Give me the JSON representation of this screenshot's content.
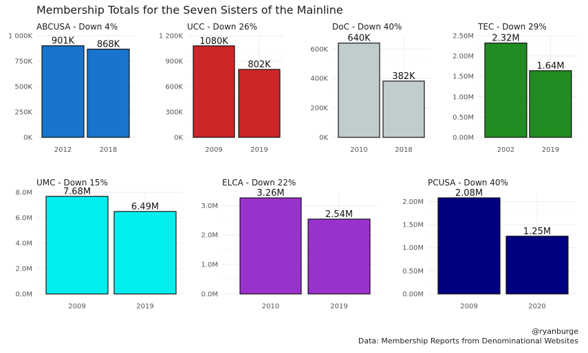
{
  "title": "Membership Totals for the Seven Sisters of the Mainline",
  "credits": {
    "author": "@ryanburge",
    "source": "Data: Membership Reports from Denominational Websites"
  },
  "chart_data": [
    {
      "type": "bar",
      "title": "ABCUSA - Down 4%",
      "categories": [
        "2012",
        "2018"
      ],
      "values": [
        901000,
        868000
      ],
      "labels": [
        "901K",
        "868K"
      ],
      "color": "#1874CD",
      "ylim": [
        0,
        1000000
      ],
      "yticks": [
        0,
        250000,
        500000,
        750000,
        1000000
      ],
      "ytick_labels": [
        "0K",
        "250K",
        "500K",
        "750K",
        "1 000K"
      ],
      "grid": true
    },
    {
      "type": "bar",
      "title": "UCC - Down 26%",
      "categories": [
        "2009",
        "2019"
      ],
      "values": [
        1080000,
        802000
      ],
      "labels": [
        "1080K",
        "802K"
      ],
      "color": "#CD2626",
      "ylim": [
        0,
        1200000
      ],
      "yticks": [
        0,
        300000,
        600000,
        900000,
        1200000
      ],
      "ytick_labels": [
        "0K",
        "300K",
        "600K",
        "900K",
        "1 200K"
      ],
      "grid": true
    },
    {
      "type": "bar",
      "title": "DoC - Down 40%",
      "categories": [
        "2010",
        "2018"
      ],
      "values": [
        640000,
        382000
      ],
      "labels": [
        "640K",
        "382K"
      ],
      "color": "#C1CDCD",
      "ylim": [
        0,
        690000
      ],
      "yticks": [
        0,
        200000,
        400000,
        600000
      ],
      "ytick_labels": [
        "0K",
        "200K",
        "400K",
        "600K"
      ],
      "grid": true
    },
    {
      "type": "bar",
      "title": "TEC - Down 29%",
      "categories": [
        "2002",
        "2019"
      ],
      "values": [
        2320000,
        1640000
      ],
      "labels": [
        "2.32M",
        "1.64M"
      ],
      "color": "#228B22",
      "ylim": [
        0,
        2500000
      ],
      "yticks": [
        0,
        500000,
        1000000,
        1500000,
        2000000,
        2500000
      ],
      "ytick_labels": [
        "0.00M",
        "0.50M",
        "1.00M",
        "1.50M",
        "2.00M",
        "2.50M"
      ],
      "grid": true
    },
    {
      "type": "bar",
      "title": "UMC - Down 15%",
      "categories": [
        "2009",
        "2019"
      ],
      "values": [
        7680000,
        6490000
      ],
      "labels": [
        "7.68M",
        "6.49M"
      ],
      "color": "#00EEEE",
      "ylim": [
        0,
        8000000
      ],
      "yticks": [
        0,
        2000000,
        4000000,
        6000000,
        8000000
      ],
      "ytick_labels": [
        "0.0M",
        "2.0M",
        "4.0M",
        "6.0M",
        "8.0M"
      ],
      "grid": true
    },
    {
      "type": "bar",
      "title": "ELCA - Down 22%",
      "categories": [
        "2010",
        "2019"
      ],
      "values": [
        3260000,
        2540000
      ],
      "labels": [
        "3.26M",
        "2.54M"
      ],
      "color": "#9932CC",
      "ylim": [
        0,
        3450000
      ],
      "yticks": [
        0,
        1000000,
        2000000,
        3000000
      ],
      "ytick_labels": [
        "0.0M",
        "1.0M",
        "2.0M",
        "3.0M"
      ],
      "grid": true
    },
    {
      "type": "bar",
      "title": "PCUSA - Down 40%",
      "categories": [
        "2009",
        "2020"
      ],
      "values": [
        2080000,
        1250000
      ],
      "labels": [
        "2.08M",
        "1.25M"
      ],
      "color": "#000080",
      "ylim": [
        0,
        2200000
      ],
      "yticks": [
        0,
        500000,
        1000000,
        1500000,
        2000000
      ],
      "ytick_labels": [
        "0.00M",
        "0.50M",
        "1.00M",
        "1.50M",
        "2.00M"
      ],
      "grid": true
    }
  ]
}
